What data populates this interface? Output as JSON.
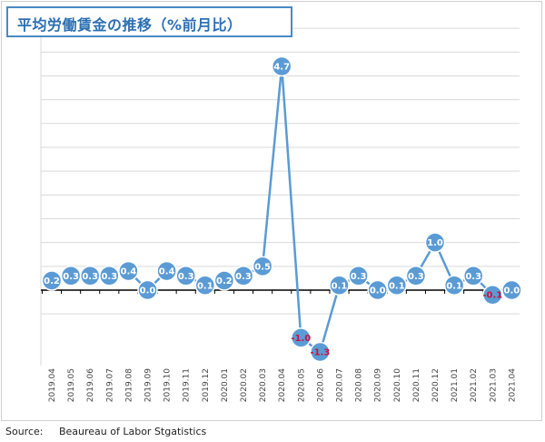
{
  "chart_data": {
    "type": "line",
    "title": "平均労働賃金の推移（%前月比）",
    "categories": [
      "2019.04",
      "2019.05",
      "2019.06",
      "2019.07",
      "2019.08",
      "2019.09",
      "2019.10",
      "2019.11",
      "2019.12",
      "2020.01",
      "2020.02",
      "2020.03",
      "2020.04",
      "2020.05",
      "2020.06",
      "2020.07",
      "2020.08",
      "2020.09",
      "2020.10",
      "2020.11",
      "2020.12",
      "2021.01",
      "2021.02",
      "2021.03",
      "2021.04"
    ],
    "values": [
      0.2,
      0.3,
      0.3,
      0.3,
      0.4,
      0.0,
      0.4,
      0.3,
      0.1,
      0.2,
      0.3,
      0.5,
      4.7,
      -1.0,
      -1.3,
      0.1,
      0.3,
      0.0,
      0.1,
      0.3,
      1.0,
      0.1,
      0.3,
      -0.1,
      0.0
    ],
    "labels": [
      "0.2",
      "0.3",
      "0.3",
      "0.3",
      "0.4",
      "0.0",
      "0.4",
      "0.3",
      "0.1",
      "0.2",
      "0.3",
      "0.5",
      "4.7",
      "-1.0",
      "-1.3",
      "0.1",
      "0.3",
      "0.0",
      "0.1",
      "0.3",
      "1.0",
      "0.1",
      "0.3",
      "-0.1",
      "0.0"
    ],
    "ylim": [
      -1.5,
      5.5
    ],
    "grid": true,
    "colors": {
      "line": "#5b9bd5",
      "marker": "#5b9bd5",
      "label_positive": "#ffffff",
      "label_negative": "#d0103a",
      "grid": "#d9d9d9",
      "zero_line": "#000000"
    }
  },
  "source": "Source:     Beaureau of Labor Stgatistics"
}
